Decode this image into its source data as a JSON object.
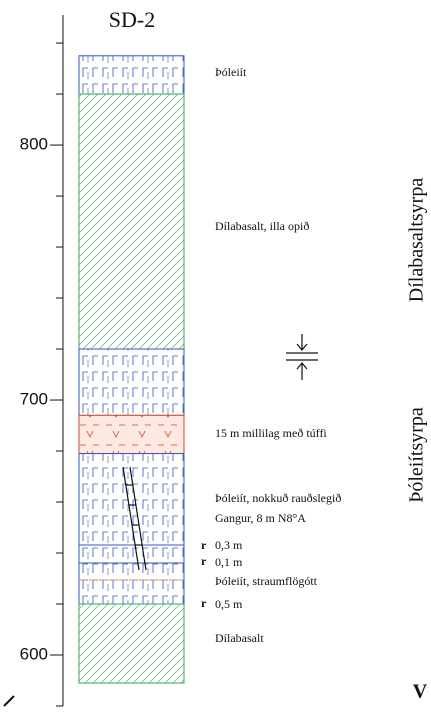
{
  "header": {
    "title": "SD-2"
  },
  "depth_axis": {
    "lim": [
      851,
      580
    ],
    "ticks": [
      800,
      700,
      600
    ],
    "minor_ticks": [
      840,
      820,
      780,
      760,
      740,
      720,
      680,
      660,
      640,
      620,
      580
    ]
  },
  "layers": [
    {
      "top": 835,
      "bottom": 820,
      "color": "#3355cc"
    },
    {
      "top": 820,
      "bottom": 720,
      "color": "#33aa55"
    },
    {
      "top": 720,
      "bottom": 694,
      "color": "#3355cc"
    },
    {
      "top": 694,
      "bottom": 679,
      "color": "#dd4422"
    },
    {
      "top": 679,
      "bottom": 620,
      "color": "#3355cc"
    },
    {
      "top": 620,
      "bottom": 589,
      "color": "#33aa55"
    }
  ],
  "labels": [
    "Þóleiít",
    "Dílabasalt, illa opið",
    "15 m millilag með túffi",
    "Þóleiít, nokkuð rauðslegið",
    "Gangur, 8 m N8°A",
    "0,3 m",
    "0,1 m",
    "Þóleiít, straumflögótt",
    "0,5 m",
    "Dílabasalt"
  ],
  "symbols": [
    "r",
    "r",
    "r"
  ],
  "groups": [
    "Dílabasaltsyrpa",
    "Þóleiítsyrpa"
  ],
  "corner": "V"
}
